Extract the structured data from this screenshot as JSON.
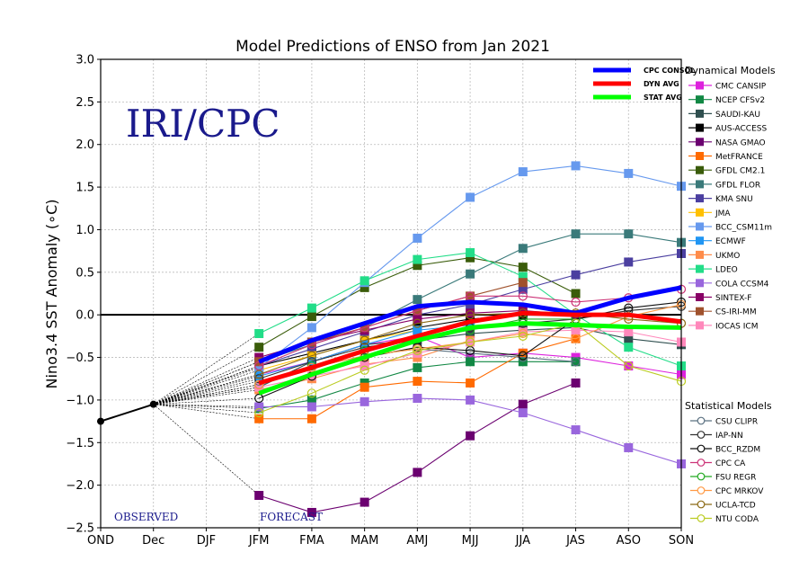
{
  "chart_data": {
    "type": "line",
    "title": "Model Predictions of ENSO from Jan 2021",
    "xlabel": "",
    "ylabel": "Nino3.4 SST Anomaly (∘C)",
    "categories": [
      "OND",
      "Dec",
      "DJF",
      "JFM",
      "FMA",
      "MAM",
      "AMJ",
      "MJJ",
      "JJA",
      "JAS",
      "ASO",
      "SON"
    ],
    "ylim": [
      -2.5,
      3.0
    ],
    "yticks": [
      "−2.5",
      "−2.0",
      "−1.5",
      "−1.0",
      "−0.5",
      "0.0",
      "0.5",
      "1.0",
      "1.5",
      "2.0",
      "2.5",
      "3.0"
    ],
    "grid": true,
    "watermark": "IRI/CPC",
    "observed_label": "OBSERVED",
    "forecast_label": "FORECAST",
    "observed": {
      "x": [
        "OND",
        "Dec"
      ],
      "values": [
        -1.25,
        -1.05
      ]
    },
    "forecast_start_index": 3,
    "averages": [
      {
        "name": "CPC CONSOL",
        "color": "#0000ff",
        "values": [
          -0.55,
          -0.3,
          -0.1,
          0.1,
          0.15,
          0.12,
          0.02,
          0.2,
          0.32
        ]
      },
      {
        "name": "DYN AVG",
        "color": "#ff0000",
        "values": [
          -0.8,
          -0.62,
          -0.42,
          -0.25,
          -0.08,
          0.02,
          0.0,
          0.0,
          -0.08
        ]
      },
      {
        "name": "STAT AVG",
        "color": "#00ff00",
        "values": [
          -0.92,
          -0.7,
          -0.5,
          -0.3,
          -0.15,
          -0.1,
          -0.12,
          -0.14,
          -0.15
        ]
      }
    ],
    "dynamical_models_title": "Dynamical Models",
    "dynamical_models": [
      {
        "name": "CMC CANSIP",
        "color": "#dd22dd",
        "values": [
          -0.7,
          -0.55,
          -0.35,
          -0.25,
          -0.5,
          -0.45,
          -0.5,
          -0.6,
          -0.7
        ]
      },
      {
        "name": "NCEP CFSv2",
        "color": "#118844",
        "values": [
          -1.1,
          -1.0,
          -0.8,
          -0.62,
          -0.55,
          -0.55,
          -0.55,
          null,
          null
        ]
      },
      {
        "name": "SAUDI-KAU",
        "color": "#2f4f4f",
        "values": [
          -0.85,
          -0.55,
          -0.35,
          -0.3,
          -0.22,
          -0.18,
          -0.15,
          -0.28,
          -0.35
        ]
      },
      {
        "name": "AUS-ACCESS",
        "color": "#000000",
        "values": [
          -0.6,
          -0.45,
          -0.3,
          -0.15,
          -0.05,
          0.0,
          0.0,
          null,
          null
        ]
      },
      {
        "name": "NASA GMAO",
        "color": "#6b0070",
        "values": [
          -2.12,
          -2.32,
          -2.2,
          -1.85,
          -1.42,
          -1.05,
          -0.8,
          null,
          null
        ]
      },
      {
        "name": "MetFRANCE",
        "color": "#ff6a00",
        "values": [
          -1.22,
          -1.22,
          -0.85,
          -0.78,
          -0.8,
          -0.45,
          -0.28,
          null,
          null
        ]
      },
      {
        "name": "GFDL CM2.1",
        "color": "#3a5c0a",
        "values": [
          -0.38,
          -0.02,
          0.32,
          0.58,
          0.67,
          0.56,
          0.25,
          null,
          null
        ]
      },
      {
        "name": "GFDL FLOR",
        "color": "#3a7a7a",
        "values": [
          -0.55,
          -0.35,
          -0.15,
          0.18,
          0.48,
          0.78,
          0.95,
          0.95,
          0.85
        ]
      },
      {
        "name": "KMA SNU",
        "color": "#4b3fa0",
        "values": [
          -0.6,
          -0.4,
          -0.2,
          0.0,
          0.12,
          0.3,
          0.47,
          0.62,
          0.72
        ]
      },
      {
        "name": "JMA",
        "color": "#ffc000",
        "values": [
          -0.65,
          -0.48,
          -0.3,
          -0.18,
          null,
          null,
          null,
          null,
          null
        ]
      },
      {
        "name": "BCC_CSM11m",
        "color": "#6699ee",
        "values": [
          -0.62,
          -0.15,
          0.38,
          0.9,
          1.38,
          1.68,
          1.75,
          1.66,
          1.51
        ]
      },
      {
        "name": "ECMWF",
        "color": "#2196f3",
        "values": [
          -0.72,
          -0.55,
          -0.35,
          -0.18,
          -0.12,
          null,
          null,
          null,
          null
        ]
      },
      {
        "name": "UKMO",
        "color": "#ff8c4a",
        "values": [
          -0.88,
          -0.75,
          -0.58,
          -0.5,
          -0.3,
          null,
          null,
          null,
          null
        ]
      },
      {
        "name": "LDEO",
        "color": "#22dd88",
        "values": [
          -0.22,
          0.08,
          0.4,
          0.65,
          0.73,
          0.45,
          0.0,
          -0.38,
          -0.6
        ]
      },
      {
        "name": "COLA CCSM4",
        "color": "#9966dd",
        "values": [
          -1.08,
          -1.08,
          -1.02,
          -0.98,
          -1.0,
          -1.15,
          -1.35,
          -1.56,
          -1.75
        ]
      },
      {
        "name": "SINTEX-F",
        "color": "#880066",
        "values": [
          -0.5,
          -0.32,
          -0.18,
          -0.05,
          0.02,
          0.05,
          0.0,
          null,
          null
        ]
      },
      {
        "name": "CS-IRI-MM",
        "color": "#a0522d",
        "values": [
          -0.55,
          -0.32,
          -0.15,
          0.05,
          0.22,
          0.38,
          null,
          null,
          null
        ]
      },
      {
        "name": "IOCAS ICM",
        "color": "#ff88bb",
        "values": [
          -0.85,
          -0.72,
          -0.6,
          -0.45,
          -0.32,
          -0.2,
          -0.18,
          -0.2,
          -0.32
        ]
      }
    ],
    "statistical_models_title": "Statistical Models",
    "statistical_models": [
      {
        "name": "CSU CLIPR",
        "color": "#5a7080",
        "values": [
          -0.78,
          -0.62,
          -0.48,
          -0.4,
          -0.45,
          -0.5,
          -0.55,
          null,
          null
        ]
      },
      {
        "name": "IAP-NN",
        "color": "#333333",
        "values": [
          -0.75,
          -0.55,
          -0.38,
          -0.3,
          -0.15,
          -0.1,
          -0.05,
          0.05,
          0.1
        ]
      },
      {
        "name": "BCC_RZDM",
        "color": "#111111",
        "values": [
          -0.98,
          -0.72,
          -0.5,
          -0.38,
          -0.42,
          -0.48,
          -0.05,
          0.08,
          0.15
        ]
      },
      {
        "name": "CPC CA",
        "color": "#cc3377",
        "values": [
          -0.6,
          -0.35,
          -0.15,
          0.05,
          0.22,
          0.22,
          0.15,
          0.2,
          0.3
        ]
      },
      {
        "name": "FSU REGR",
        "color": "#22aa22",
        "values": [
          -0.82,
          -0.6,
          -0.42,
          -0.28,
          -0.18,
          -0.05,
          -0.05,
          null,
          null
        ]
      },
      {
        "name": "CPC MRKOV",
        "color": "#ff9944",
        "values": [
          -0.82,
          -0.62,
          -0.48,
          -0.4,
          -0.32,
          -0.22,
          -0.28,
          -0.02,
          0.12
        ]
      },
      {
        "name": "UCLA-TCD",
        "color": "#8b6914",
        "values": [
          -0.7,
          -0.48,
          -0.3,
          -0.1,
          0.0,
          0.02,
          0.02,
          -0.05,
          -0.1
        ]
      },
      {
        "name": "NTU CODA",
        "color": "#bbcc22",
        "values": [
          -1.15,
          -0.92,
          -0.65,
          -0.42,
          -0.32,
          -0.25,
          -0.1,
          -0.6,
          -0.78
        ]
      }
    ]
  }
}
